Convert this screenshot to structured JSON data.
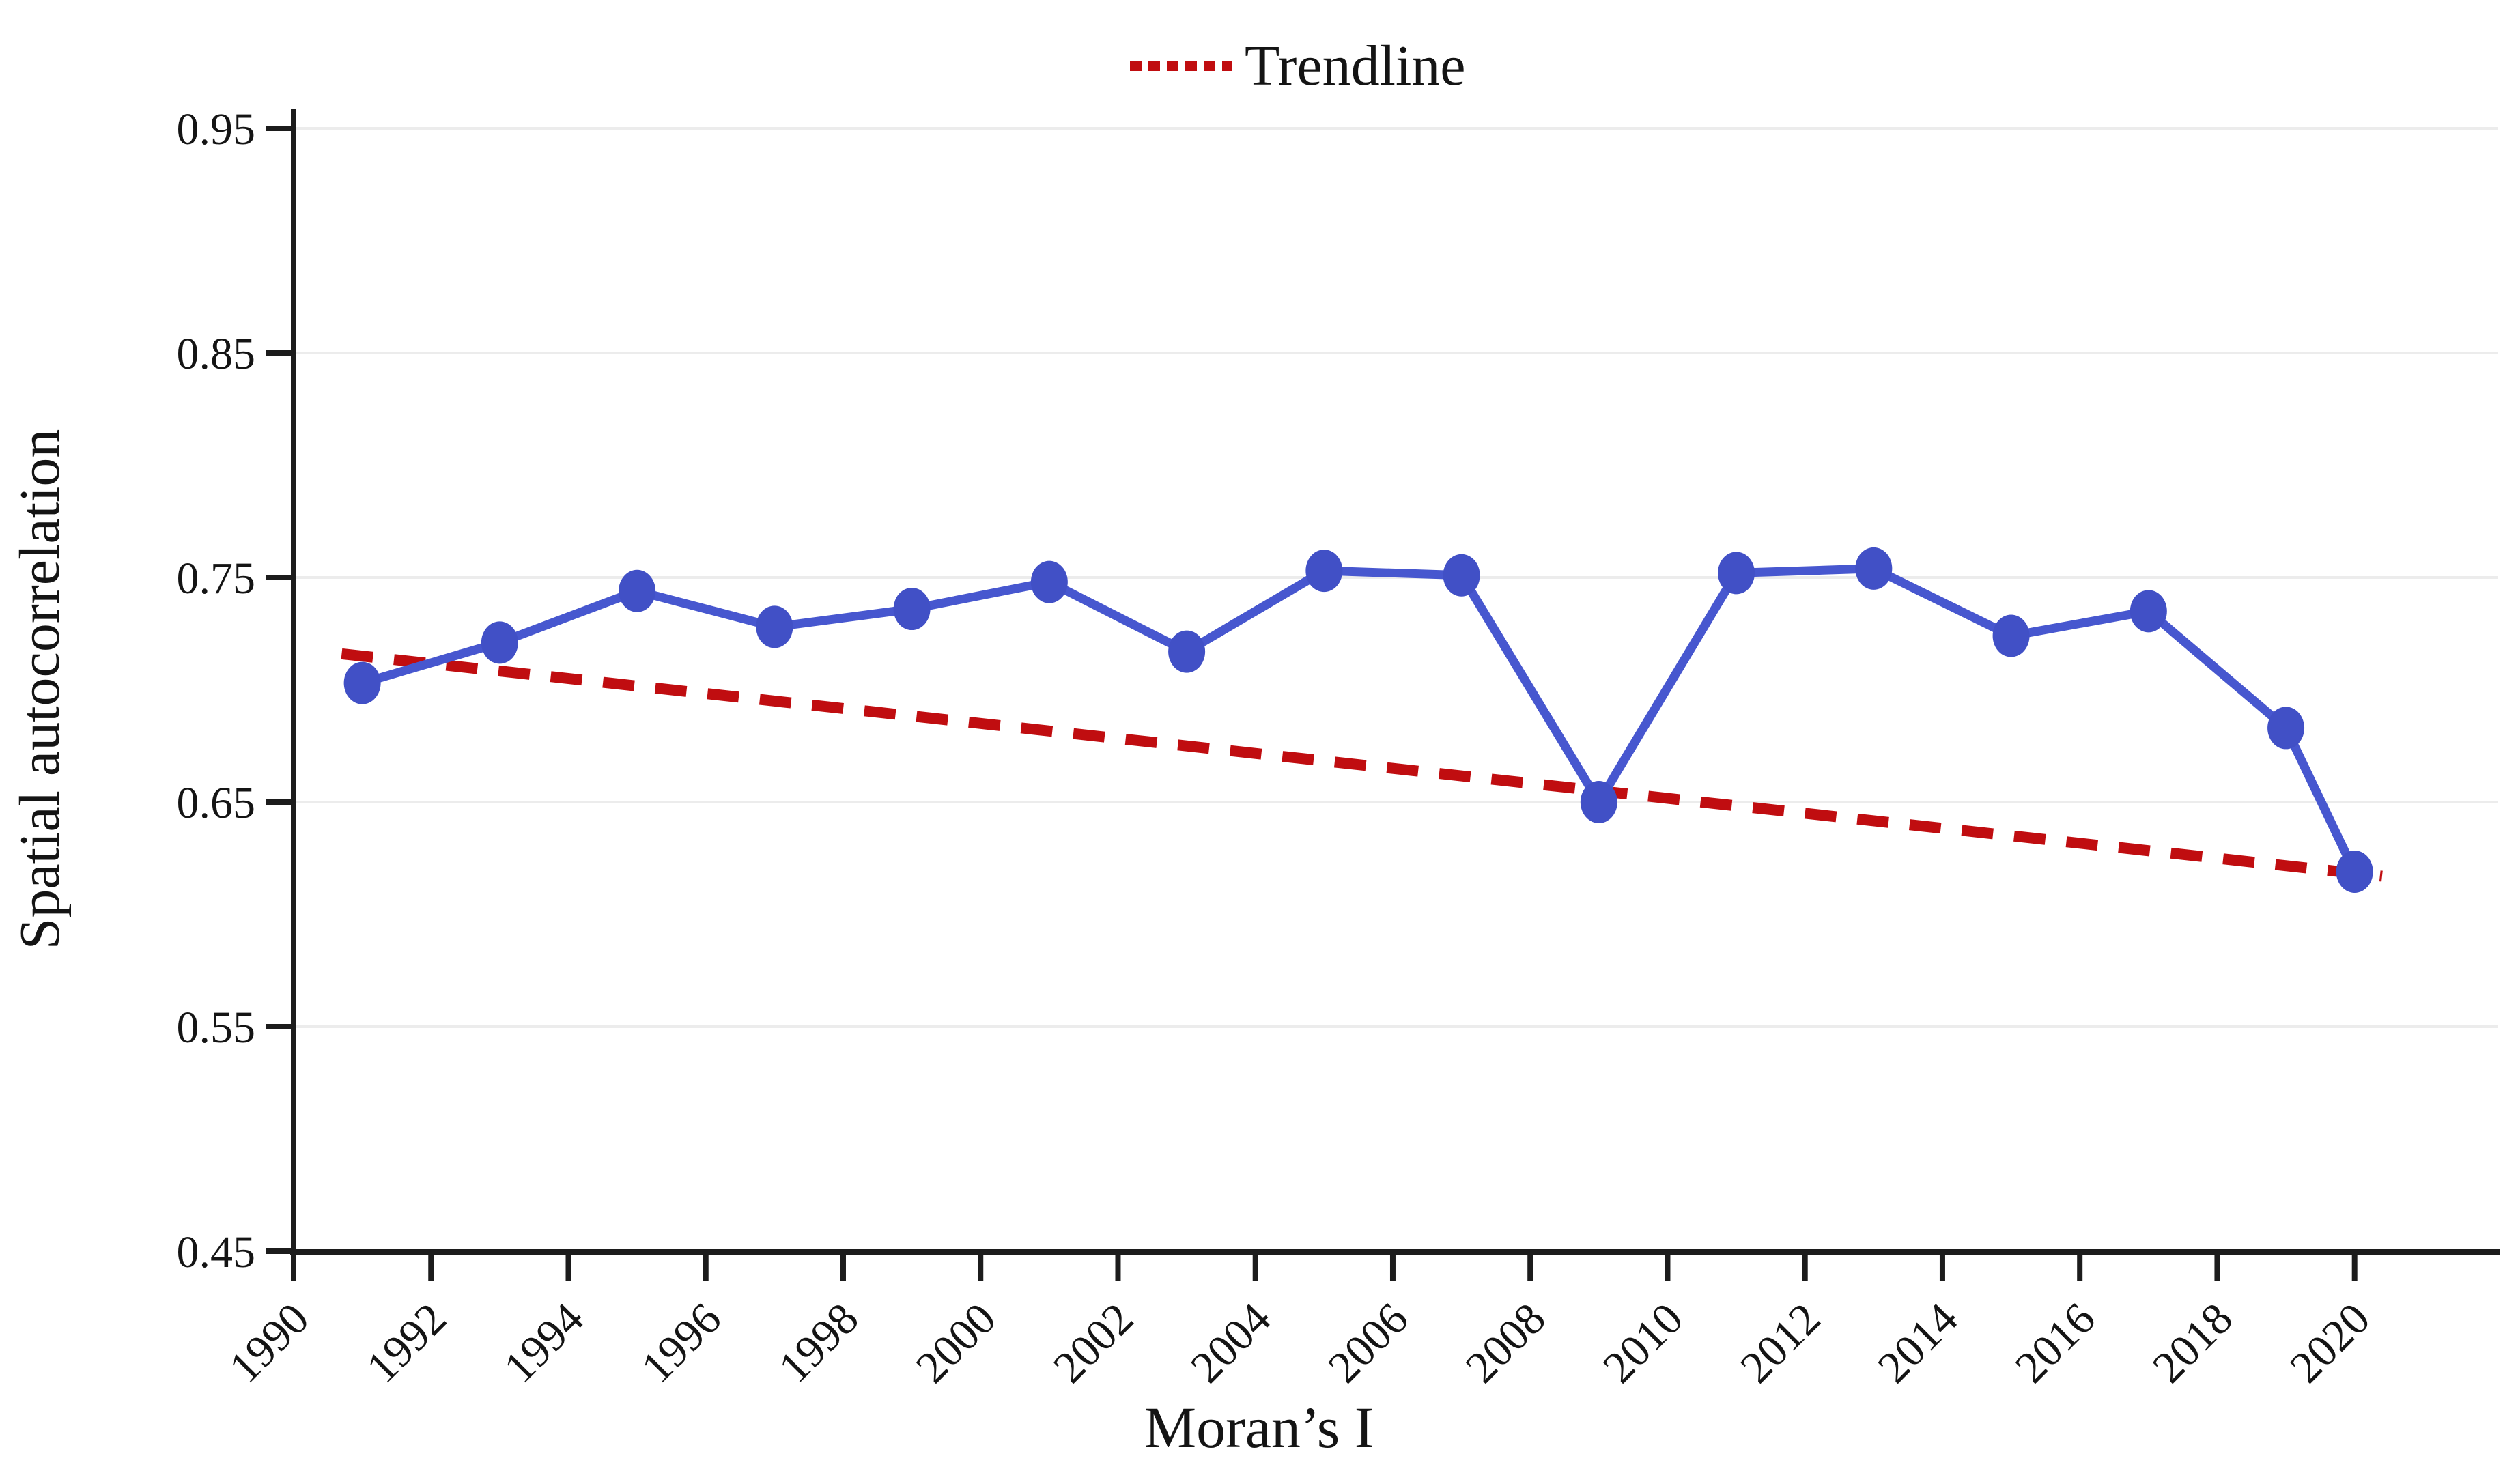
{
  "figure": {
    "background": "#ffffff",
    "aria_label": "Line chart of spatial autocorrelation (Moran's I) by year with trendline"
  },
  "legend": {
    "position": "top-center",
    "entries": [
      {
        "label": "Trendline",
        "icon": "dashed-line-icon",
        "color": "#c00d10"
      }
    ]
  },
  "chart_data": {
    "type": "line",
    "title": "",
    "xlabel": "Moran’s I",
    "ylabel": "Spatial autocorrelation",
    "xlim": [
      1990,
      2022.1
    ],
    "ylim": [
      0.45,
      0.95
    ],
    "x_ticks": [
      1990,
      1992,
      1994,
      1996,
      1998,
      2000,
      2002,
      2004,
      2006,
      2008,
      2010,
      2012,
      2014,
      2016,
      2018,
      2020
    ],
    "x_tick_labels": [
      "1990",
      "1992",
      "1994",
      "1996",
      "1998",
      "2000",
      "2002",
      "2004",
      "2006",
      "2008",
      "2010",
      "2012",
      "2014",
      "2016",
      "2018",
      "2020"
    ],
    "y_ticks": [
      0.45,
      0.55,
      0.65,
      0.75,
      0.85,
      0.95
    ],
    "y_tick_labels": [
      "0.45",
      "0.55",
      "0.65",
      "0.75",
      "0.85",
      "0.95"
    ],
    "grid": "horizontal-light",
    "grid_color": "#ececec",
    "axis_color": "#1c1c1c",
    "text_color": "#141414",
    "legend_label": "Trendline",
    "series": [
      {
        "name": "Moran's I",
        "type": "line-with-markers",
        "line_color": "#4757cf",
        "marker_color": "#4150c6",
        "x": [
          1991,
          1993,
          1995,
          1997,
          1999,
          2001,
          2003,
          2005,
          2007,
          2009,
          2011,
          2013,
          2015,
          2017,
          2019,
          2020
        ],
        "values": [
          0.703,
          0.721,
          0.744,
          0.728,
          0.736,
          0.748,
          0.717,
          0.753,
          0.751,
          0.65,
          0.752,
          0.754,
          0.724,
          0.735,
          0.683,
          0.619
        ]
      },
      {
        "name": "Trendline",
        "type": "dashed-trendline",
        "line_color": "#c00d10",
        "x": [
          1990.7,
          2020.4
        ],
        "values": [
          0.716,
          0.617
        ]
      }
    ]
  }
}
